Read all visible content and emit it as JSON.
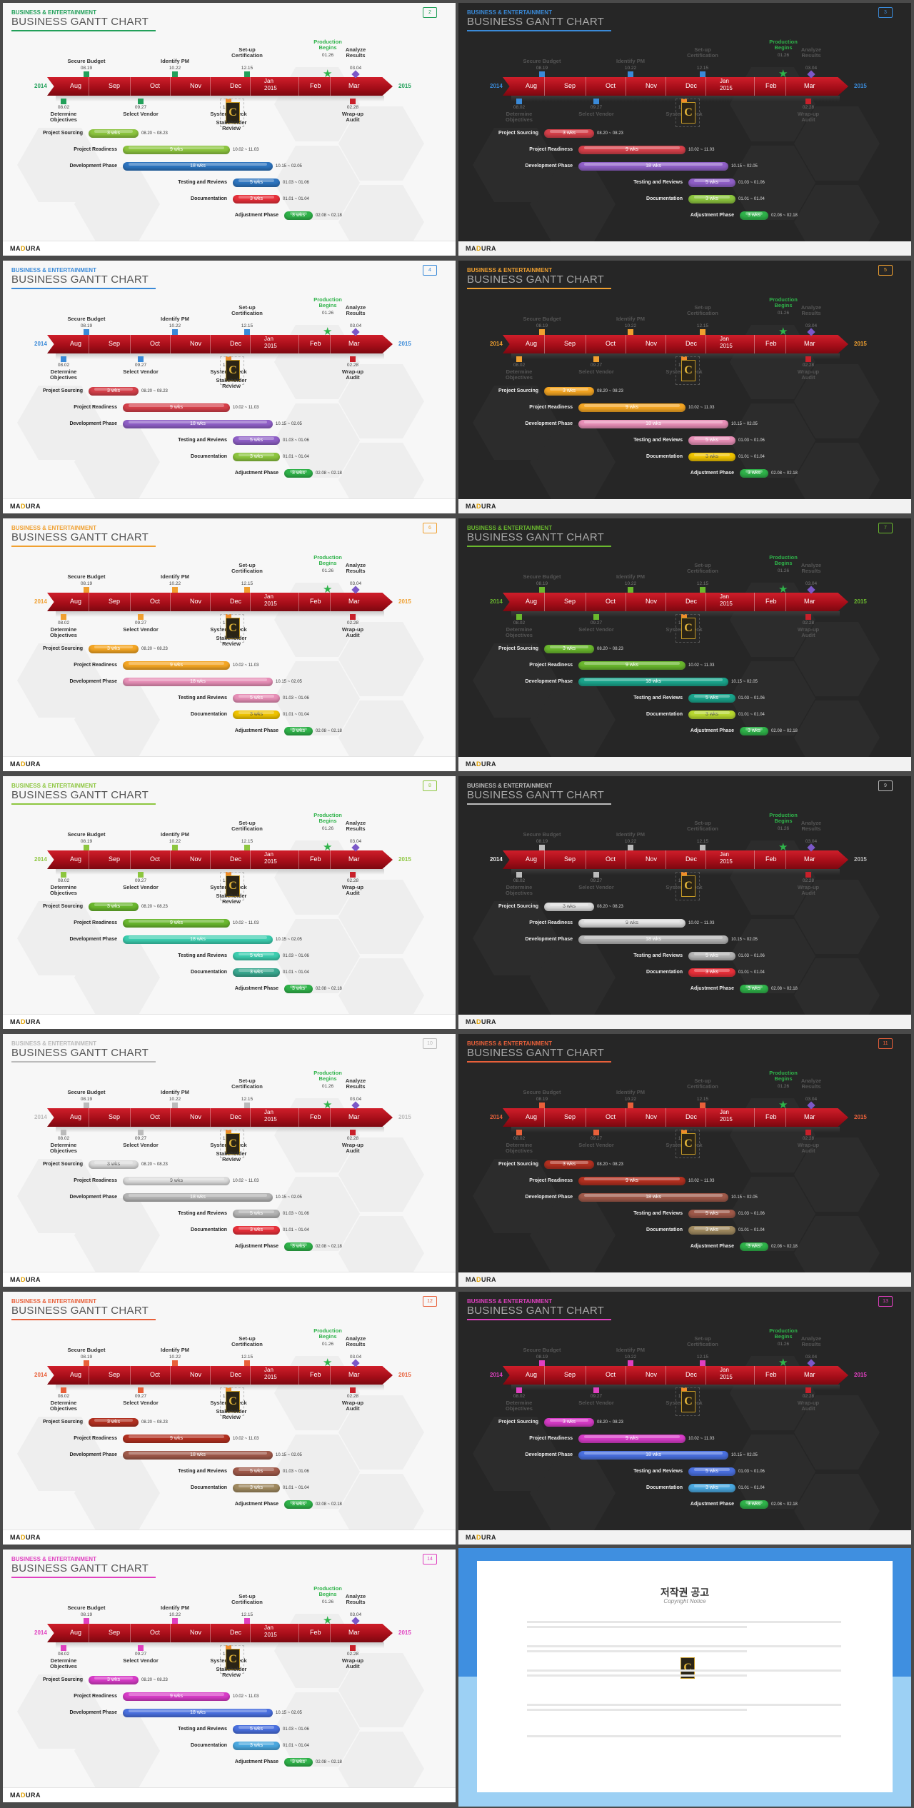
{
  "category": "BUSINESS & ENTERTAINMENT",
  "title": "BUSINESS GANTT CHART",
  "brand": {
    "ma": "MA",
    "d": "D",
    "ura": "URA"
  },
  "years": {
    "start": "2014",
    "end": "2015"
  },
  "months": [
    "Aug",
    "Sep",
    "Oct",
    "Nov",
    "Dec",
    "Jan\n2015",
    "Feb",
    "Mar"
  ],
  "milestones_top": [
    {
      "label": "Secure Budget",
      "date": "08.19"
    },
    {
      "label": "Identify PM",
      "date": "10.22"
    },
    {
      "label": "Set-up\nCertification",
      "date": "12.15"
    },
    {
      "label": "Analyze\nResults",
      "date": "03.04"
    }
  ],
  "production": {
    "label": "Production\nBegins",
    "date": "01.26"
  },
  "milestones_bottom": [
    {
      "label": "Determine\nObjectives",
      "date": "08.02"
    },
    {
      "label": "Select Vendor",
      "date": "09.27"
    },
    {
      "label": "System Check",
      "date": "12.29"
    },
    {
      "label": "Wrap-up\nAudit",
      "date": "02.28"
    }
  ],
  "stakeholder": {
    "label": "Stakeholder\nReview",
    "logo": "C"
  },
  "tasks": [
    {
      "name": "Project Sourcing",
      "bar": "3 wks",
      "span": "08.20 ~ 08.23"
    },
    {
      "name": "Project Readiness",
      "bar": "9 wks",
      "span": "10.02 ~ 11.03"
    },
    {
      "name": "Development Phase",
      "bar": "18 wks",
      "span": "10.15 ~ 02.05"
    },
    {
      "name": "Testing and Reviews",
      "bar": "5 wks",
      "span": "01.03 ~ 01.06"
    },
    {
      "name": "Documentation",
      "bar": "3 wks",
      "span": "01.01 ~ 01.04"
    },
    {
      "name": "Adjustment Phase",
      "bar": "3 wks",
      "span": "02.08 ~ 02.18"
    }
  ],
  "slides": [
    {
      "page": "2",
      "theme": "light",
      "accent": "#22a05a",
      "bars": [
        "#8dc63f",
        "#8dc63f",
        "#2e75c0",
        "#2e75c0",
        "#e8303a",
        "#2fb34a"
      ]
    },
    {
      "page": "3",
      "theme": "dark",
      "accent": "#3a8ad8",
      "bars": [
        "#d6404a",
        "#d6404a",
        "#9060c8",
        "#9060c8",
        "#8dc63f",
        "#2fb34a"
      ]
    },
    {
      "page": "4",
      "theme": "light",
      "accent": "#3a8ad8",
      "bars": [
        "#d6404a",
        "#d6404a",
        "#9060c8",
        "#9060c8",
        "#8dc63f",
        "#2fb34a"
      ]
    },
    {
      "page": "5",
      "theme": "dark",
      "accent": "#f0a030",
      "bars": [
        "#f5a623",
        "#f5a623",
        "#e890b8",
        "#e890b8",
        "#f0c400",
        "#2fb34a"
      ]
    },
    {
      "page": "6",
      "theme": "light",
      "accent": "#f0a030",
      "bars": [
        "#f5a623",
        "#f5a623",
        "#e890b8",
        "#e890b8",
        "#f0c400",
        "#2fb34a"
      ]
    },
    {
      "page": "7",
      "theme": "dark",
      "accent": "#6ab82e",
      "bars": [
        "#6ab82e",
        "#6ab82e",
        "#1aa58c",
        "#1aa58c",
        "#b8d930",
        "#2fb34a"
      ]
    },
    {
      "page": "8",
      "theme": "light",
      "accent": "#8dc63f",
      "bars": [
        "#6ab82e",
        "#6ab82e",
        "#3ccfb0",
        "#3ccfb0",
        "#3aa890",
        "#2fb34a"
      ]
    },
    {
      "page": "9",
      "theme": "dark",
      "accent": "#bbbbbb",
      "bars": [
        "#dddddd",
        "#dddddd",
        "#b5b5b5",
        "#b5b5b5",
        "#e8303a",
        "#2fb34a"
      ]
    },
    {
      "page": "10",
      "theme": "light",
      "accent": "#bbbbbb",
      "bars": [
        "#dddddd",
        "#dddddd",
        "#b5b5b5",
        "#b5b5b5",
        "#e8303a",
        "#2fb34a"
      ]
    },
    {
      "page": "11",
      "theme": "dark",
      "accent": "#e8603a",
      "bars": [
        "#b23020",
        "#b23020",
        "#a05a4a",
        "#a05a4a",
        "#a08a60",
        "#2fb34a"
      ]
    },
    {
      "page": "12",
      "theme": "light",
      "accent": "#e8603a",
      "bars": [
        "#b23020",
        "#b23020",
        "#a05a4a",
        "#a05a4a",
        "#a08a60",
        "#2fb34a"
      ]
    },
    {
      "page": "13",
      "theme": "dark",
      "accent": "#e040c0",
      "bars": [
        "#d83cc8",
        "#d83cc8",
        "#4a70e0",
        "#4a70e0",
        "#4aa8e0",
        "#2fb34a"
      ]
    },
    {
      "page": "14",
      "theme": "light",
      "accent": "#e040c0",
      "bars": [
        "#d83cc8",
        "#d83cc8",
        "#4a70e0",
        "#4a70e0",
        "#4aa8e0",
        "#2fb34a"
      ]
    }
  ],
  "notice": {
    "title": "저작권 공고",
    "subtitle": "Copyright Notice",
    "paragraphs": [
      "",
      "",
      "",
      "",
      ""
    ]
  }
}
